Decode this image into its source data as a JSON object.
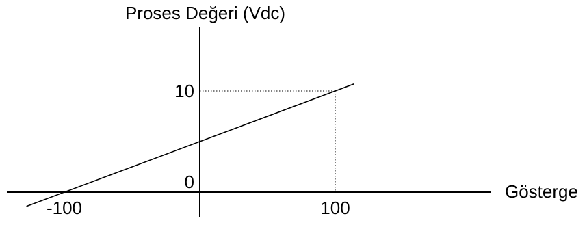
{
  "chart_data": {
    "type": "line",
    "title": "",
    "ylabel": "Proses Değeri (Vdc)",
    "xlabel": "Gösterge",
    "x_ticks": [
      {
        "value": -100,
        "label": "-100"
      },
      {
        "value": 100,
        "label": "100"
      }
    ],
    "y_ticks": [
      {
        "value": 0,
        "label": "0"
      },
      {
        "value": 10,
        "label": "10"
      }
    ],
    "xlim": [
      -145,
      215
    ],
    "ylim": [
      -0.3,
      12
    ],
    "series": [
      {
        "points": [
          {
            "x": -100,
            "y": 0
          },
          {
            "x": 100,
            "y": 10
          }
        ]
      }
    ],
    "reference_point": {
      "x": 100,
      "y": 10,
      "style": "dotted guide lines"
    },
    "grid": false
  }
}
